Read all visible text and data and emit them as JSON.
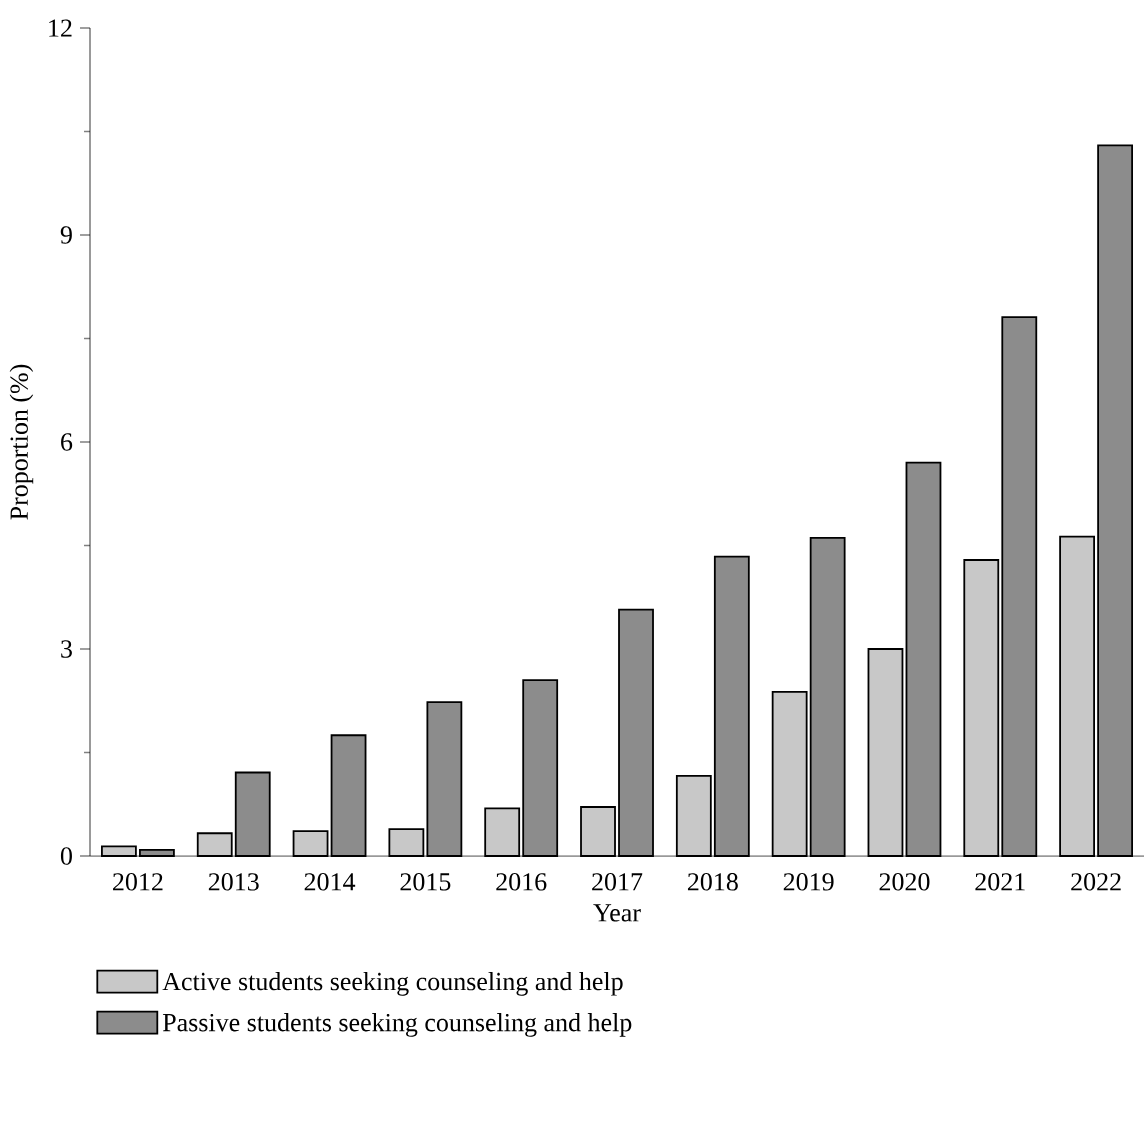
{
  "chart_data": {
    "type": "bar",
    "xlabel": "Year",
    "ylabel": "Proportion (%)",
    "categories": [
      "2012",
      "2013",
      "2014",
      "2015",
      "2016",
      "2017",
      "2018",
      "2019",
      "2020",
      "2021",
      "2022"
    ],
    "series": [
      {
        "name": "Active students seeking counseling and help",
        "color": "#c8c8c8",
        "values": [
          0.14,
          0.33,
          0.36,
          0.39,
          0.69,
          0.71,
          1.16,
          2.38,
          3.0,
          4.29,
          4.63
        ]
      },
      {
        "name": "Passive students seeking counseling and help",
        "color": "#8c8c8c",
        "values": [
          0.09,
          1.21,
          1.75,
          2.23,
          2.55,
          3.57,
          4.34,
          4.61,
          5.7,
          7.81,
          10.3
        ]
      }
    ],
    "ylim": [
      0,
      12
    ],
    "yticks": [
      0,
      3,
      6,
      9,
      12
    ],
    "grid": false,
    "legend": "bottom"
  }
}
